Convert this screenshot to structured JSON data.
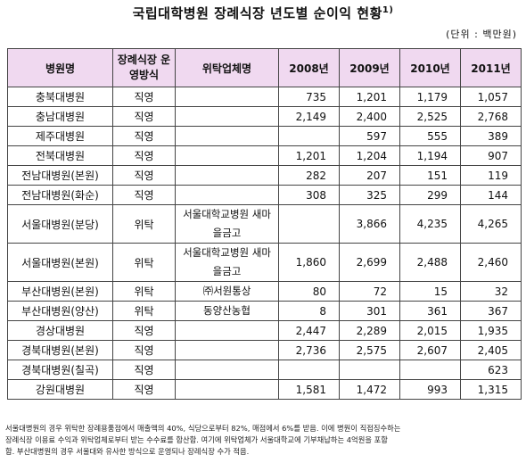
{
  "title": "국립대학병원 장례식장 년도별 순이익 현황",
  "footnote_mark": "1)",
  "unit": "(단위 : 백만원)",
  "headers": {
    "hospital": "병원명",
    "operation_type": "장례식장 운영방식",
    "contractor": "위탁업체명",
    "y2008": "2008년",
    "y2009": "2009년",
    "y2010": "2010년",
    "y2011": "2011년"
  },
  "rows": [
    {
      "hospital": "충북대병원",
      "type": "직영",
      "contractor": "",
      "y2008": "735",
      "y2009": "1,201",
      "y2010": "1,179",
      "y2011": "1,057"
    },
    {
      "hospital": "충남대병원",
      "type": "직영",
      "contractor": "",
      "y2008": "2,149",
      "y2009": "2,400",
      "y2010": "2,525",
      "y2011": "2,768"
    },
    {
      "hospital": "제주대병원",
      "type": "직영",
      "contractor": "",
      "y2008": "",
      "y2009": "597",
      "y2010": "555",
      "y2011": "389"
    },
    {
      "hospital": "전북대병원",
      "type": "직영",
      "contractor": "",
      "y2008": "1,201",
      "y2009": "1,204",
      "y2010": "1,194",
      "y2011": "907"
    },
    {
      "hospital": "전남대병원(본원)",
      "type": "직영",
      "contractor": "",
      "y2008": "282",
      "y2009": "207",
      "y2010": "151",
      "y2011": "119"
    },
    {
      "hospital": "전남대병원(화순)",
      "type": "직영",
      "contractor": "",
      "y2008": "308",
      "y2009": "325",
      "y2010": "299",
      "y2011": "144"
    },
    {
      "hospital": "서울대병원(분당)",
      "type": "위탁",
      "contractor": "서울대학교병원 새마을금고",
      "y2008": "",
      "y2009": "3,866",
      "y2010": "4,235",
      "y2011": "4,265"
    },
    {
      "hospital": "서울대병원(본원)",
      "type": "위탁",
      "contractor": "서울대학교병원 새마을금고",
      "y2008": "1,860",
      "y2009": "2,699",
      "y2010": "2,488",
      "y2011": "2,460"
    },
    {
      "hospital": "부산대병원(본원)",
      "type": "위탁",
      "contractor": "㈜서원통상",
      "y2008": "80",
      "y2009": "72",
      "y2010": "15",
      "y2011": "32"
    },
    {
      "hospital": "부산대병원(양산)",
      "type": "위탁",
      "contractor": "동양산농협",
      "y2008": "8",
      "y2009": "301",
      "y2010": "361",
      "y2011": "367"
    },
    {
      "hospital": "경상대병원",
      "type": "직영",
      "contractor": "",
      "y2008": "2,447",
      "y2009": "2,289",
      "y2010": "2,015",
      "y2011": "1,935"
    },
    {
      "hospital": "경북대병원(본원)",
      "type": "직영",
      "contractor": "",
      "y2008": "2,736",
      "y2009": "2,575",
      "y2010": "2,607",
      "y2011": "2,405"
    },
    {
      "hospital": "경북대병원(칠곡)",
      "type": "직영",
      "contractor": "",
      "y2008": "",
      "y2009": "",
      "y2010": "",
      "y2011": "623"
    },
    {
      "hospital": "강원대병원",
      "type": "직영",
      "contractor": "",
      "y2008": "1,581",
      "y2009": "1,472",
      "y2010": "993",
      "y2011": "1,315"
    }
  ],
  "note_lines": [
    "서울대병원의 경우 위탁한 장례용품점에서 매출액의 40%, 식당으로부터 82%, 매점에서 6%를 받음. 이에 병원이 직접징수하는",
    "장례식장 이용료 수익과 위탁업체로부터 받는 수수료를 합산함. 여기에 위탁업체가 서울대학교에 기부채납하는 4억원을 포함",
    "함. 부산대병원의 경우 서울대와 유사한 방식으로 운영되나 장례식장 수가 적음."
  ]
}
